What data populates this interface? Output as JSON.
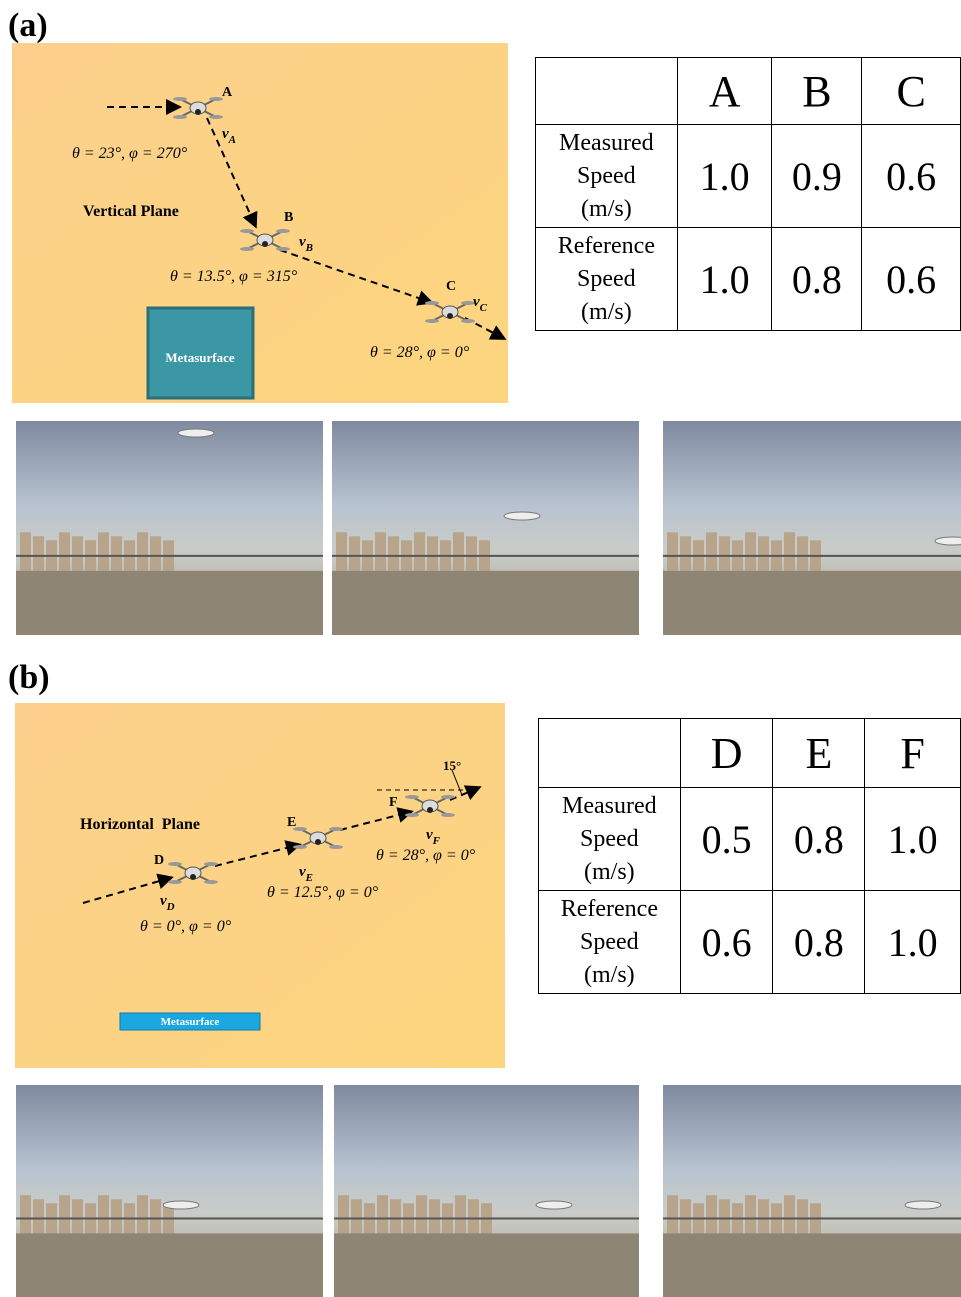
{
  "panels": [
    {
      "tag": "(a)",
      "diagram": {
        "plane": "Vertical Plane",
        "surface": "Metasurface",
        "nodes": [
          {
            "label": "A",
            "velocity": "v",
            "angles": "θ = 23°, φ = 270°"
          },
          {
            "label": "B",
            "velocity": "v",
            "angles": "θ = 13.5°, φ = 315°"
          },
          {
            "label": "C",
            "velocity": "v",
            "angles": "θ = 28°, φ = 0°"
          }
        ]
      },
      "table": {
        "columns": [
          "A",
          "B",
          "C"
        ],
        "rows": [
          {
            "label": [
              "Measured",
              "Speed",
              "(m/s)"
            ],
            "values": [
              "1.0",
              "0.9",
              "0.6"
            ]
          },
          {
            "label": [
              "Reference",
              "Speed",
              "(m/s)"
            ],
            "values": [
              "1.0",
              "0.8",
              "0.6"
            ]
          }
        ]
      }
    },
    {
      "tag": "(b)",
      "diagram": {
        "plane": "Horizontal  Plane",
        "surface": "Metasurface",
        "angle_mark": "15°",
        "nodes": [
          {
            "label": "D",
            "velocity": "v",
            "angles": "θ = 0°, φ = 0°"
          },
          {
            "label": "E",
            "velocity": "v",
            "angles": "θ = 12.5°, φ = 0°"
          },
          {
            "label": "F",
            "velocity": "v",
            "angles": "θ = 28°, φ = 0°"
          }
        ]
      },
      "table": {
        "columns": [
          "D",
          "E",
          "F"
        ],
        "rows": [
          {
            "label": [
              "Measured",
              "Speed",
              "(m/s)"
            ],
            "values": [
              "0.5",
              "0.8",
              "1.0"
            ]
          },
          {
            "label": [
              "Reference",
              "Speed",
              "(m/s)"
            ],
            "values": [
              "0.6",
              "0.8",
              "1.0"
            ]
          }
        ]
      }
    }
  ]
}
